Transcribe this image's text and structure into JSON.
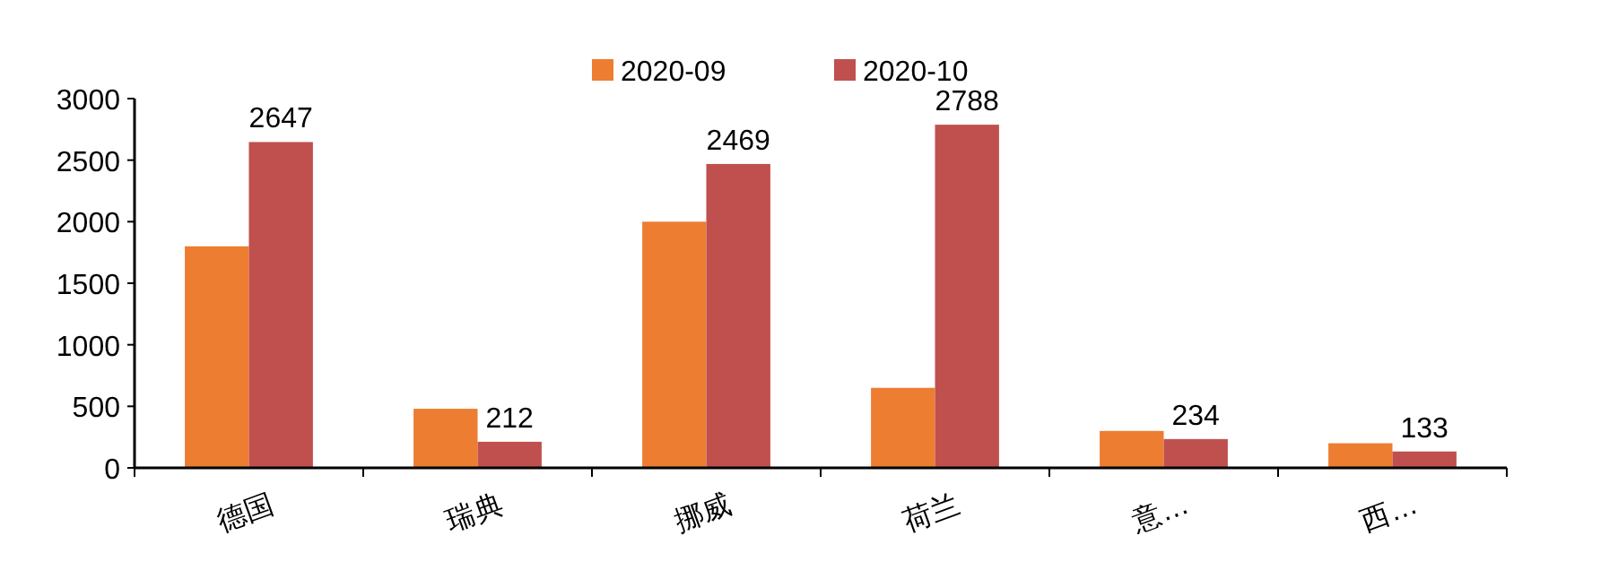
{
  "chart_data": {
    "type": "bar",
    "categories": [
      "德国",
      "瑞典",
      "挪威",
      "荷兰",
      "意…",
      "西…"
    ],
    "series": [
      {
        "name": "2020-09",
        "color": "#ed7d31",
        "values": [
          1800,
          480,
          2000,
          650,
          300,
          200
        ]
      },
      {
        "name": "2020-10",
        "color": "#c0504d",
        "values": [
          2647,
          212,
          2469,
          2788,
          234,
          133
        ],
        "value_labels": [
          "2647",
          "212",
          "2469",
          "2788",
          "234",
          "133"
        ]
      }
    ],
    "ylim": [
      0,
      3000
    ],
    "yticks": [
      0,
      500,
      1000,
      1500,
      2000,
      2500,
      3000
    ],
    "legend": "top",
    "grid": false
  }
}
